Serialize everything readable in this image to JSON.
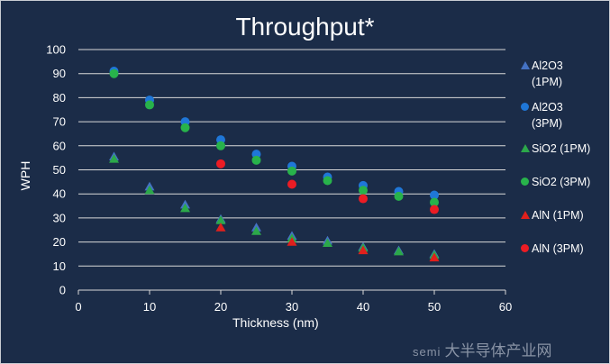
{
  "chart_data": {
    "type": "scatter",
    "title": "Throughput*",
    "xlabel": "Thickness (nm)",
    "ylabel": "WPH",
    "xlim": [
      0,
      60
    ],
    "ylim": [
      0,
      100
    ],
    "x_ticks": [
      0,
      10,
      20,
      30,
      40,
      50,
      60
    ],
    "y_ticks": [
      0,
      10,
      20,
      30,
      40,
      50,
      60,
      70,
      80,
      90,
      100
    ],
    "grid": "horizontal",
    "legend_position": "right",
    "series": [
      {
        "name": "Al2O3 (1PM)",
        "name_lines": [
          "Al2O3",
          "(1PM)"
        ],
        "marker": "triangle",
        "color": "#4472c4",
        "x": [
          5,
          10,
          15,
          20,
          25,
          30,
          35,
          40,
          45,
          50
        ],
        "y": [
          55.5,
          43,
          35.5,
          29.5,
          26,
          22.5,
          20.5,
          18,
          16.5,
          15
        ]
      },
      {
        "name": "Al2O3 (3PM)",
        "name_lines": [
          "Al2O3",
          "(3PM)"
        ],
        "marker": "circle",
        "color": "#1f77d8",
        "x": [
          5,
          10,
          15,
          20,
          25,
          30,
          35,
          40,
          45,
          50
        ],
        "y": [
          91,
          79,
          70,
          62.5,
          56.5,
          51.5,
          47,
          43.5,
          41,
          39.5
        ]
      },
      {
        "name": "SiO2 (1PM)",
        "name_lines": [
          "SiO2 (1PM)"
        ],
        "marker": "triangle",
        "color": "#2ca84a",
        "x": [
          5,
          10,
          15,
          20,
          25,
          30,
          35,
          40,
          45,
          50
        ],
        "y": [
          54.5,
          41.5,
          34,
          29,
          24.5,
          21.5,
          19.5,
          17.5,
          16,
          14.5
        ]
      },
      {
        "name": "SiO2 (3PM)",
        "name_lines": [
          "SiO2 (3PM)"
        ],
        "marker": "circle",
        "color": "#28b34b",
        "x": [
          5,
          10,
          15,
          20,
          25,
          30,
          35,
          40,
          45,
          50
        ],
        "y": [
          90,
          77,
          67.5,
          60,
          54,
          49.5,
          45.5,
          41.5,
          39,
          36.5
        ]
      },
      {
        "name": "AlN (1PM)",
        "name_lines": [
          "AlN (1PM)"
        ],
        "marker": "triangle",
        "color": "#e0201c",
        "x": [
          20,
          30,
          40,
          50
        ],
        "y": [
          26,
          20,
          16.5,
          13.5
        ]
      },
      {
        "name": "AlN (3PM)",
        "name_lines": [
          "AlN (3PM)"
        ],
        "marker": "circle",
        "color": "#ec1c24",
        "x": [
          20,
          30,
          40,
          50
        ],
        "y": [
          52.5,
          44,
          38,
          33.5
        ]
      }
    ]
  },
  "watermark": {
    "logo": "semi",
    "text": "大半导体产业网"
  }
}
